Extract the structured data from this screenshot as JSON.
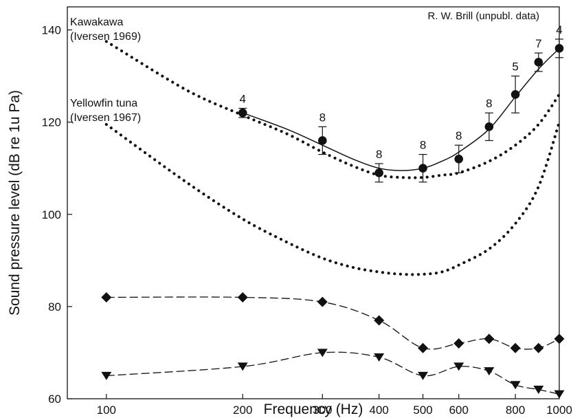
{
  "chart_data": {
    "type": "line",
    "xlabel": "Frequency (Hz)",
    "ylabel": "Sound pressure level (dB re 1u Pa)",
    "xscale": "log",
    "xlim": [
      82,
      1000
    ],
    "ylim": [
      60,
      145
    ],
    "xticks": [
      100,
      200,
      300,
      400,
      500,
      600,
      800,
      1000
    ],
    "xtick_labels": [
      "100",
      "200",
      "300",
      "400",
      "500",
      "600",
      "800",
      "1000"
    ],
    "yticks": [
      60,
      80,
      100,
      120,
      140
    ],
    "ytick_labels": [
      "60",
      "80",
      "100",
      "120",
      "140"
    ],
    "grid": false,
    "annotations": [
      {
        "text": "R. W. Brill (unpubl. data)",
        "position": "top-right"
      }
    ],
    "series": [
      {
        "label_lines": [
          "Kawakawa",
          "(Iversen 1969)"
        ],
        "style": "dotted",
        "x": [
          100,
          150,
          200,
          250,
          300,
          350,
          400,
          450,
          500,
          550,
          600,
          700,
          800,
          900,
          1000
        ],
        "y": [
          137.5,
          127,
          121.5,
          117.5,
          113.5,
          110.5,
          108.5,
          108,
          108,
          108.5,
          109,
          111.5,
          115,
          119.5,
          126
        ]
      },
      {
        "label_lines": [
          "Yellowfin tuna",
          "(Iversen 1967)"
        ],
        "style": "dotted",
        "x": [
          100,
          150,
          200,
          250,
          300,
          350,
          400,
          450,
          500,
          550,
          600,
          700,
          800,
          900,
          1000
        ],
        "y": [
          119.5,
          107,
          99,
          94,
          90.5,
          88.5,
          87.5,
          87,
          87,
          87.5,
          89,
          92.5,
          98,
          106,
          120
        ]
      },
      {
        "style": "solid-circle-errorbar",
        "x": [
          200,
          300,
          400,
          500,
          600,
          700,
          800,
          900,
          1000
        ],
        "y": [
          122,
          116,
          109,
          110,
          112,
          119,
          126,
          133,
          136
        ],
        "err": [
          1,
          3,
          2,
          3,
          3,
          3,
          4,
          2,
          2
        ],
        "n_labels": [
          "4",
          "8",
          "8",
          "8",
          "8",
          "8",
          "5",
          "7",
          "4"
        ],
        "fit_x": [
          200,
          250,
          300,
          350,
          400,
          450,
          500,
          550,
          600,
          700,
          800,
          900,
          1000
        ],
        "fit_y": [
          122,
          118.5,
          115,
          112,
          110,
          109.5,
          110,
          111.5,
          113.5,
          118.5,
          125.5,
          131.5,
          136
        ]
      },
      {
        "style": "dashed-diamond",
        "x": [
          100,
          200,
          300,
          400,
          500,
          600,
          700,
          800,
          900,
          1000
        ],
        "y": [
          82,
          82,
          81,
          77,
          71,
          72,
          73,
          71,
          71,
          73
        ]
      },
      {
        "style": "dashed-triangle-down",
        "x": [
          100,
          200,
          300,
          400,
          500,
          600,
          700,
          800,
          900,
          1000
        ],
        "y": [
          65,
          67,
          70,
          69,
          65,
          67,
          66,
          63,
          62,
          61
        ]
      }
    ]
  }
}
